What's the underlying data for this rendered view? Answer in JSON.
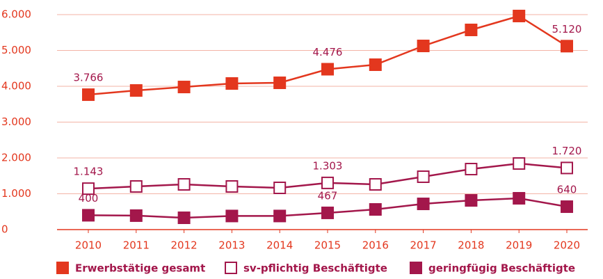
{
  "chart_data": {
    "type": "line",
    "categories": [
      "2010",
      "2011",
      "2012",
      "2013",
      "2014",
      "2015",
      "2016",
      "2017",
      "2018",
      "2019",
      "2020"
    ],
    "series": [
      {
        "name": "Erwerbstätige gesamt",
        "color": "#e3371e",
        "filled": true,
        "values": [
          3766,
          3883,
          3980,
          4078,
          4097,
          4476,
          4602,
          5126,
          5573,
          5961,
          5120
        ],
        "value_labels": [
          "3.766",
          null,
          null,
          null,
          null,
          "4.476",
          null,
          null,
          null,
          null,
          "5.120"
        ]
      },
      {
        "name": "sv-pflichtig Beschäftigte",
        "color": "#a3174b",
        "filled": false,
        "values": [
          1143,
          1204,
          1262,
          1204,
          1165,
          1303,
          1262,
          1476,
          1689,
          1845,
          1720
        ],
        "value_labels": [
          "1.143",
          null,
          null,
          null,
          null,
          "1.303",
          null,
          null,
          null,
          null,
          "1.720"
        ]
      },
      {
        "name": "geringfügig Beschäftigte",
        "color": "#a3174b",
        "filled": true,
        "values": [
          400,
          390,
          330,
          380,
          380,
          467,
          563,
          718,
          815,
          874,
          640
        ],
        "value_labels": [
          "400",
          null,
          null,
          null,
          null,
          "467",
          null,
          null,
          null,
          null,
          "640"
        ]
      }
    ],
    "ylim": [
      0,
      6000
    ],
    "yticks": [
      0,
      {
        "value": 1000,
        "label": "1.000"
      },
      {
        "value": 2000,
        "label": "2.000"
      },
      {
        "value": 3000,
        "label": "3.000"
      },
      {
        "value": 4000,
        "label": "4.000"
      },
      {
        "value": 5000,
        "label": "5.000"
      },
      {
        "value": 6000,
        "label": "6.000"
      }
    ],
    "grid": true,
    "legend": "bottom"
  }
}
